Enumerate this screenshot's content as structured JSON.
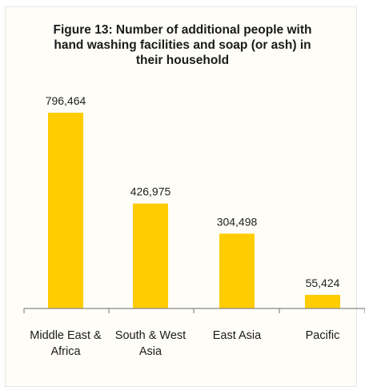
{
  "chart_data": {
    "type": "bar",
    "title": "Figure 13: Number of additional people with hand washing facilities and soap (or ash) in their household",
    "categories": [
      [
        "Middle East &",
        "Africa"
      ],
      [
        "South & West",
        "Asia"
      ],
      [
        "East Asia"
      ],
      [
        "Pacific"
      ]
    ],
    "values": [
      796464,
      426975,
      304498,
      55424
    ],
    "value_labels": [
      "796,464",
      "426,975",
      "304,498",
      "55,424"
    ],
    "xlabel": "",
    "ylabel": "",
    "ylim": [
      0,
      800000
    ],
    "grid": false,
    "legend": "none",
    "bar_color": "#FFCC00"
  }
}
